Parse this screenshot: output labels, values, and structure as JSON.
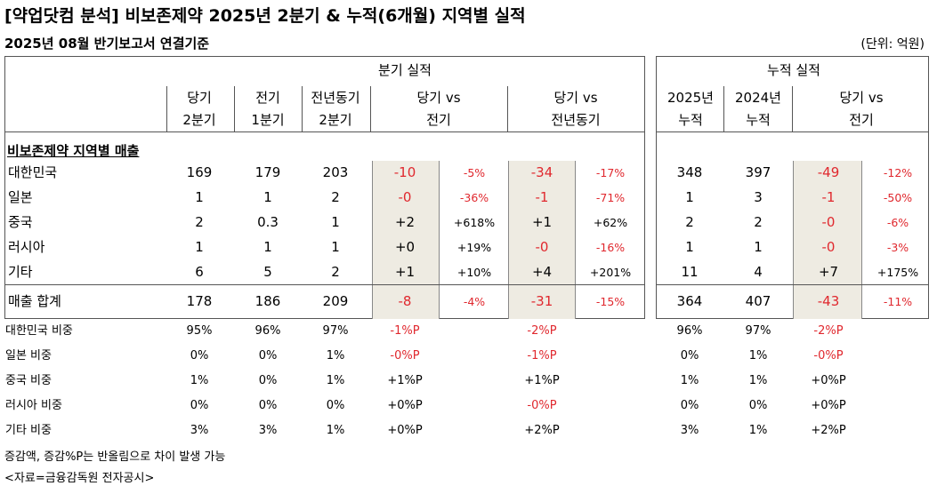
{
  "title": "[약업닷컴 분석] 비보존제약 2025년 2분기 & 누적(6개월) 지역별 실적",
  "subtitle": "2025년 08월 반기보고서 연결기준",
  "unit": "(단위: 억원)",
  "quarter_header": "분기 실적",
  "cum_header": "누적 실적",
  "columns": {
    "q_cur": [
      "당기",
      "2분기"
    ],
    "q_prev": [
      "전기",
      "1분기"
    ],
    "q_yoy": [
      "전년동기",
      "2분기"
    ],
    "q_vs_prev": [
      "당기 vs",
      "전기"
    ],
    "q_vs_yoy": [
      "당기 vs",
      "전년동기"
    ],
    "c_cur": [
      "2025년",
      "누적"
    ],
    "c_prev": [
      "2024년",
      "누적"
    ],
    "c_vs": [
      "당기 vs",
      "전기"
    ]
  },
  "section_label": "비보존제약 지역별 매출",
  "rows": [
    {
      "label": "대한민국",
      "q_cur": "169",
      "q_prev": "179",
      "q_yoy": "203",
      "d_prev": "-10",
      "p_prev": "-5%",
      "d_yoy": "-34",
      "p_yoy": "-17%",
      "c_cur": "348",
      "c_prev": "397",
      "c_d": "-49",
      "c_p": "-12%"
    },
    {
      "label": "일본",
      "q_cur": "1",
      "q_prev": "1",
      "q_yoy": "2",
      "d_prev": "-0",
      "p_prev": "-36%",
      "d_yoy": "-1",
      "p_yoy": "-71%",
      "c_cur": "1",
      "c_prev": "3",
      "c_d": "-1",
      "c_p": "-50%"
    },
    {
      "label": "중국",
      "q_cur": "2",
      "q_prev": "0.3",
      "q_yoy": "1",
      "d_prev": "+2",
      "p_prev": "+618%",
      "d_yoy": "+1",
      "p_yoy": "+62%",
      "c_cur": "2",
      "c_prev": "2",
      "c_d": "-0",
      "c_p": "-6%"
    },
    {
      "label": "러시아",
      "q_cur": "1",
      "q_prev": "1",
      "q_yoy": "1",
      "d_prev": "+0",
      "p_prev": "+19%",
      "d_yoy": "-0",
      "p_yoy": "-16%",
      "c_cur": "1",
      "c_prev": "1",
      "c_d": "-0",
      "c_p": "-3%"
    },
    {
      "label": "기타",
      "q_cur": "6",
      "q_prev": "5",
      "q_yoy": "2",
      "d_prev": "+1",
      "p_prev": "+10%",
      "d_yoy": "+4",
      "p_yoy": "+201%",
      "c_cur": "11",
      "c_prev": "4",
      "c_d": "+7",
      "c_p": "+175%"
    }
  ],
  "total": {
    "label": "매출 합계",
    "q_cur": "178",
    "q_prev": "186",
    "q_yoy": "209",
    "d_prev": "-8",
    "p_prev": "-4%",
    "d_yoy": "-31",
    "p_yoy": "-15%",
    "c_cur": "364",
    "c_prev": "407",
    "c_d": "-43",
    "c_p": "-11%"
  },
  "ratios": [
    {
      "label": "대한민국 비중",
      "q_cur": "95%",
      "q_prev": "96%",
      "q_yoy": "97%",
      "d_prev": "-1%P",
      "d_yoy": "-2%P",
      "c_cur": "96%",
      "c_prev": "97%",
      "c_d": "-2%P"
    },
    {
      "label": "일본 비중",
      "q_cur": "0%",
      "q_prev": "0%",
      "q_yoy": "1%",
      "d_prev": "-0%P",
      "d_yoy": "-1%P",
      "c_cur": "0%",
      "c_prev": "1%",
      "c_d": "-0%P"
    },
    {
      "label": "중국 비중",
      "q_cur": "1%",
      "q_prev": "0%",
      "q_yoy": "1%",
      "d_prev": "+1%P",
      "d_yoy": "+1%P",
      "c_cur": "1%",
      "c_prev": "1%",
      "c_d": "+0%P"
    },
    {
      "label": "러시아 비중",
      "q_cur": "0%",
      "q_prev": "0%",
      "q_yoy": "0%",
      "d_prev": "+0%P",
      "d_yoy": "-0%P",
      "c_cur": "0%",
      "c_prev": "0%",
      "c_d": "+0%P"
    },
    {
      "label": "기타 비중",
      "q_cur": "3%",
      "q_prev": "3%",
      "q_yoy": "1%",
      "d_prev": "+0%P",
      "d_yoy": "+2%P",
      "c_cur": "3%",
      "c_prev": "1%",
      "c_d": "+2%P"
    }
  ],
  "notes": [
    "증감액, 증감%P는 반올림으로 차이 발생 가능",
    "<자료=금융감독원 전자공시>"
  ],
  "colors": {
    "negative": "#e0282e",
    "shade": "#eeebe2",
    "border": "#555555"
  }
}
